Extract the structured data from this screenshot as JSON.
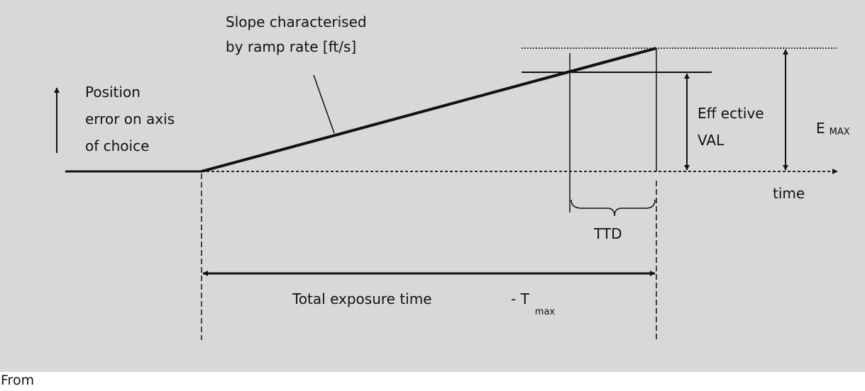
{
  "diagram": {
    "slope_label": [
      "Slope characterised",
      "by ramp rate [ft/s]"
    ],
    "y_axis_label": [
      "Position",
      "error on axis",
      "of choice"
    ],
    "effective_val_label": [
      "Eff ective",
      "VAL"
    ],
    "emax_label": "E",
    "emax_subscript": "MAX",
    "time_label": "time",
    "ttd_label": "TTD",
    "exposure_label": "Total exposure time",
    "tmax_label": "- T",
    "tmax_subscript": "max"
  },
  "footer_text": "From",
  "colors": {
    "background": "#d8d8d8",
    "ink": "#111111",
    "page": "#ffffff"
  }
}
